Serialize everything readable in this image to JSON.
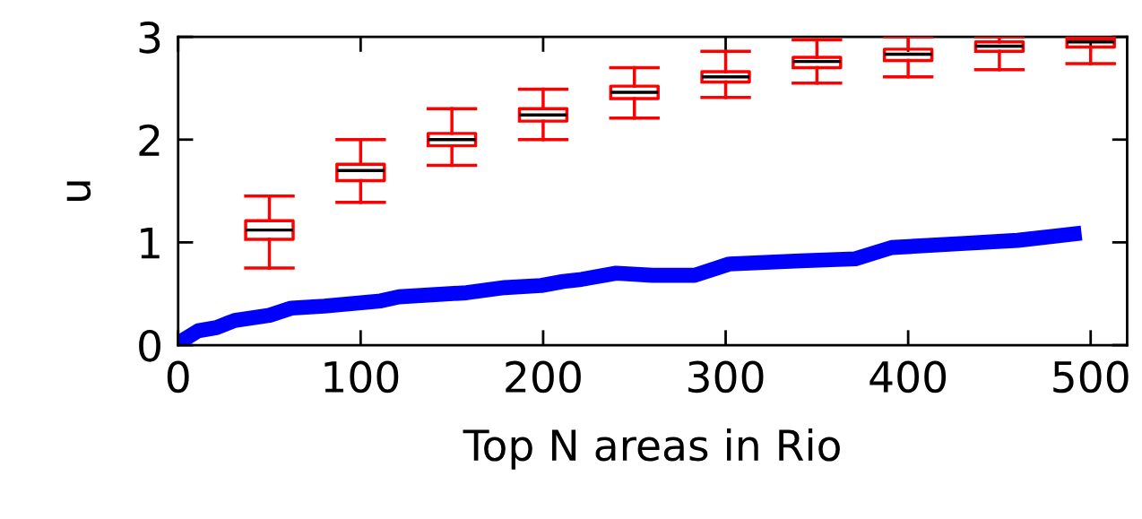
{
  "chart_data": {
    "type": "box",
    "xlabel": "Top N areas in Rio",
    "ylabel": "u",
    "xlim": [
      0,
      520
    ],
    "xticks": [
      0,
      100,
      200,
      300,
      400,
      500
    ],
    "ylim": [
      0,
      3
    ],
    "yticks": [
      0,
      1,
      2,
      3
    ],
    "grid": false,
    "series": [
      {
        "color": "#ff0000",
        "x": [
          50,
          100,
          150,
          200,
          250,
          300,
          350,
          400,
          450,
          500
        ],
        "boxes": [
          {
            "low": 0.75,
            "q1": 1.03,
            "median": 1.12,
            "q3": 1.21,
            "high": 1.45
          },
          {
            "low": 1.39,
            "q1": 1.6,
            "median": 1.7,
            "q3": 1.76,
            "high": 2.0
          },
          {
            "low": 1.75,
            "q1": 1.94,
            "median": 2.0,
            "q3": 2.06,
            "high": 2.3
          },
          {
            "low": 2.0,
            "q1": 2.18,
            "median": 2.24,
            "q3": 2.3,
            "high": 2.49
          },
          {
            "low": 2.21,
            "q1": 2.4,
            "median": 2.46,
            "q3": 2.52,
            "high": 2.7
          },
          {
            "low": 2.41,
            "q1": 2.56,
            "median": 2.61,
            "q3": 2.66,
            "high": 2.86
          },
          {
            "low": 2.55,
            "q1": 2.7,
            "median": 2.76,
            "q3": 2.8,
            "high": 2.97
          },
          {
            "low": 2.61,
            "q1": 2.77,
            "median": 2.83,
            "q3": 2.88,
            "high": 3.0
          },
          {
            "low": 2.68,
            "q1": 2.86,
            "median": 2.91,
            "q3": 2.95,
            "high": 3.0
          },
          {
            "low": 2.74,
            "q1": 2.9,
            "median": 2.95,
            "q3": 2.98,
            "high": 3.0
          }
        ]
      },
      {
        "type": "line",
        "color": "#0000ff",
        "x": [
          0,
          11,
          21,
          31,
          50,
          62,
          80,
          111,
          121,
          158,
          179,
          199,
          211,
          221,
          240,
          260,
          283,
          302,
          341,
          371,
          391,
          431,
          460,
          495
        ],
        "values": [
          0.02,
          0.14,
          0.17,
          0.24,
          0.29,
          0.36,
          0.38,
          0.43,
          0.47,
          0.51,
          0.56,
          0.58,
          0.62,
          0.64,
          0.7,
          0.68,
          0.68,
          0.79,
          0.82,
          0.84,
          0.95,
          0.99,
          1.02,
          1.09
        ]
      }
    ]
  }
}
